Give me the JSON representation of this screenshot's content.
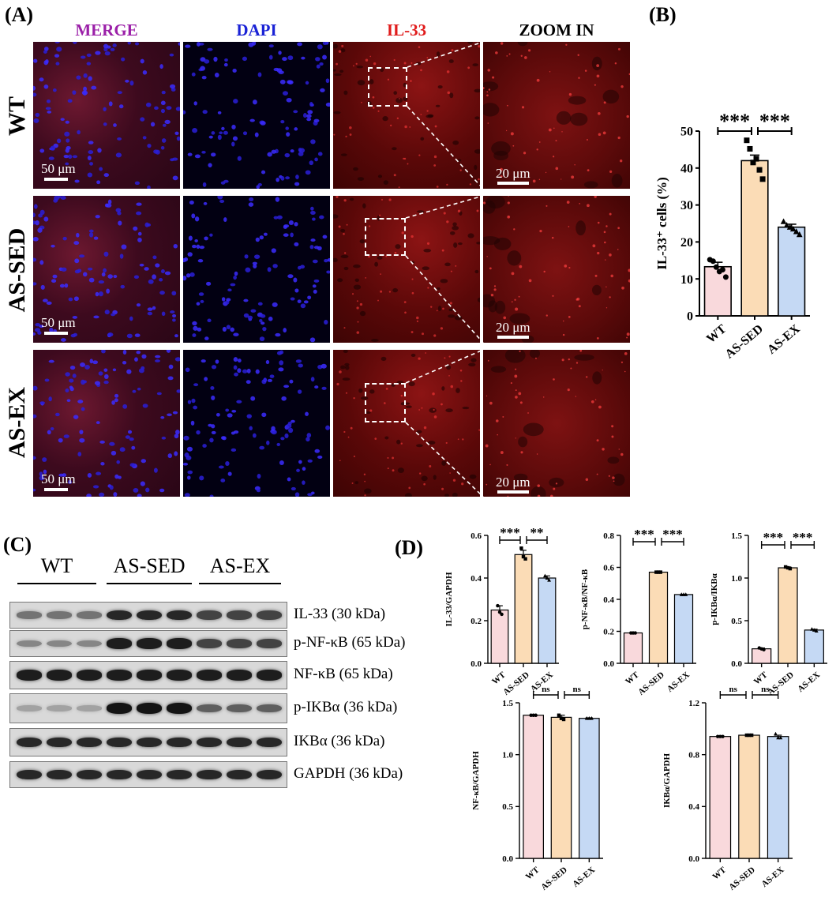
{
  "panels": {
    "A": "(A)",
    "B": "(B)",
    "C": "(C)",
    "D": "(D)"
  },
  "panelA": {
    "columns": [
      {
        "label": "MERGE",
        "color": "#9b1fa8"
      },
      {
        "label": "DAPI",
        "color": "#1a22d6"
      },
      {
        "label": "IL-33",
        "color": "#e01b1b"
      },
      {
        "label": "ZOOM IN",
        "color": "#000000"
      }
    ],
    "rows": [
      "WT",
      "AS-SED",
      "AS-EX"
    ],
    "scale_small": "50 μm",
    "scale_zoom": "20 μm"
  },
  "panelC": {
    "groups": [
      "WT",
      "AS-SED",
      "AS-EX"
    ],
    "bands": [
      {
        "label": "IL-33 (30 kDa)",
        "intensity": [
          0.45,
          0.45,
          0.45,
          0.85,
          0.85,
          0.85,
          0.7,
          0.7,
          0.7
        ]
      },
      {
        "label": "p-NF-κB (65 kDa)",
        "intensity": [
          0.35,
          0.35,
          0.35,
          0.9,
          0.9,
          0.9,
          0.7,
          0.7,
          0.7
        ]
      },
      {
        "label": "NF-κB (65 kDa)",
        "intensity": [
          0.9,
          0.9,
          0.9,
          0.9,
          0.9,
          0.9,
          0.9,
          0.9,
          0.9
        ]
      },
      {
        "label": "p-IKBα (36 kDa)",
        "intensity": [
          0.2,
          0.2,
          0.2,
          0.95,
          0.95,
          0.95,
          0.55,
          0.55,
          0.55
        ]
      },
      {
        "label": "IKBα (36 kDa)",
        "intensity": [
          0.85,
          0.85,
          0.85,
          0.85,
          0.85,
          0.85,
          0.85,
          0.85,
          0.85
        ]
      },
      {
        "label": "GAPDH (36 kDa)",
        "intensity": [
          0.85,
          0.85,
          0.85,
          0.85,
          0.85,
          0.85,
          0.85,
          0.85,
          0.85
        ]
      }
    ]
  },
  "colors": {
    "wt": "#f9d9dc",
    "sed": "#fbdcb6",
    "ex": "#c5d9f4"
  },
  "chart_data": [
    {
      "id": "B",
      "type": "bar",
      "categories": [
        "WT",
        "AS-SED",
        "AS-EX"
      ],
      "values": [
        13.3,
        42,
        24
      ],
      "errors": [
        1.2,
        1.5,
        0.8
      ],
      "points": [
        [
          15.2,
          14.8,
          13.2,
          12.0,
          12.5,
          10.5
        ],
        [
          47.5,
          45.2,
          41.5,
          42.5,
          39.5,
          37.0
        ],
        [
          25.5,
          24.5,
          24.0,
          23.5,
          22.8,
          22.0
        ]
      ],
      "ylabel": "IL-33⁺ cells (%)",
      "ylim": [
        0,
        50
      ],
      "yticks": [
        0,
        10,
        20,
        30,
        40,
        50
      ],
      "sig": [
        "***",
        "***"
      ]
    },
    {
      "id": "D1",
      "type": "bar",
      "categories": [
        "WT",
        "AS-SED",
        "AS-EX"
      ],
      "values": [
        0.25,
        0.51,
        0.4
      ],
      "errors": [
        0.02,
        0.02,
        0.01
      ],
      "points": [
        [
          0.27,
          0.24,
          0.23
        ],
        [
          0.54,
          0.5,
          0.49
        ],
        [
          0.41,
          0.4,
          0.39
        ]
      ],
      "ylabel": "IL-33/GAPDH",
      "ylim": [
        0,
        0.6
      ],
      "yticks": [
        "0.0",
        "0.2",
        "0.4",
        "0.6"
      ],
      "sig": [
        "***",
        "**"
      ]
    },
    {
      "id": "D2",
      "type": "bar",
      "categories": [
        "WT",
        "AS-SED",
        "AS-EX"
      ],
      "values": [
        0.19,
        0.57,
        0.43
      ],
      "errors": [
        0.003,
        0.004,
        0.002
      ],
      "points": [
        [
          0.19,
          0.19,
          0.19
        ],
        [
          0.57,
          0.57,
          0.57
        ],
        [
          0.43,
          0.43,
          0.43
        ]
      ],
      "ylabel": "p-NF-κB/NF-κB",
      "ylim": [
        0,
        0.8
      ],
      "yticks": [
        "0.0",
        "0.2",
        "0.4",
        "0.6",
        "0.8"
      ],
      "sig": [
        "***",
        "***"
      ]
    },
    {
      "id": "D3",
      "type": "bar",
      "categories": [
        "WT",
        "AS-SED",
        "AS-EX"
      ],
      "values": [
        0.17,
        1.12,
        0.39
      ],
      "errors": [
        0.01,
        0.01,
        0.01
      ],
      "points": [
        [
          0.18,
          0.17,
          0.16
        ],
        [
          1.13,
          1.12,
          1.11
        ],
        [
          0.4,
          0.39,
          0.38
        ]
      ],
      "ylabel": "p-IKBα/IKBα",
      "ylim": [
        0,
        1.5
      ],
      "yticks": [
        "0.0",
        "0.5",
        "1.0",
        "1.5"
      ],
      "sig": [
        "***",
        "***"
      ]
    },
    {
      "id": "D4",
      "type": "bar",
      "categories": [
        "WT",
        "AS-SED",
        "AS-EX"
      ],
      "values": [
        1.38,
        1.36,
        1.35
      ],
      "errors": [
        0.005,
        0.02,
        0.005
      ],
      "points": [
        [
          1.38,
          1.38,
          1.38
        ],
        [
          1.38,
          1.35,
          1.34
        ],
        [
          1.35,
          1.35,
          1.35
        ]
      ],
      "ylabel": "NF-κB/GAPDH",
      "ylim": [
        0,
        1.5
      ],
      "yticks": [
        "0.0",
        "0.5",
        "1.0",
        "1.5"
      ],
      "sig": [
        "ns",
        "ns"
      ]
    },
    {
      "id": "D5",
      "type": "bar",
      "categories": [
        "WT",
        "AS-SED",
        "AS-EX"
      ],
      "values": [
        0.94,
        0.95,
        0.94
      ],
      "errors": [
        0.005,
        0.004,
        0.01
      ],
      "points": [
        [
          0.94,
          0.94,
          0.94
        ],
        [
          0.95,
          0.95,
          0.95
        ],
        [
          0.96,
          0.93,
          0.93
        ]
      ],
      "ylabel": "IKBα/GAPDH",
      "ylim": [
        0,
        1.2
      ],
      "yticks": [
        "0.0",
        "0.4",
        "0.8",
        "1.2"
      ],
      "sig": [
        "ns",
        "ns"
      ]
    }
  ]
}
